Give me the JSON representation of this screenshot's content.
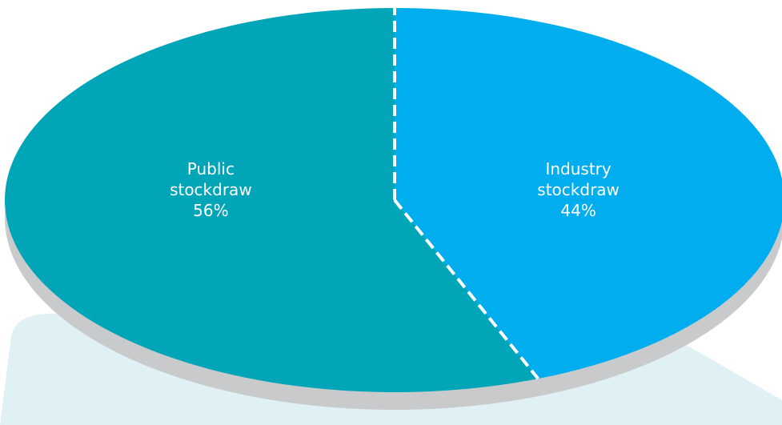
{
  "chart_data": {
    "type": "pie",
    "categories": [
      "Industry stockdraw",
      "Public stockdraw"
    ],
    "values": [
      44,
      56
    ],
    "value_labels": [
      "44%",
      "56%"
    ],
    "colors": [
      "#00adef",
      "#00a5b8"
    ]
  }
}
